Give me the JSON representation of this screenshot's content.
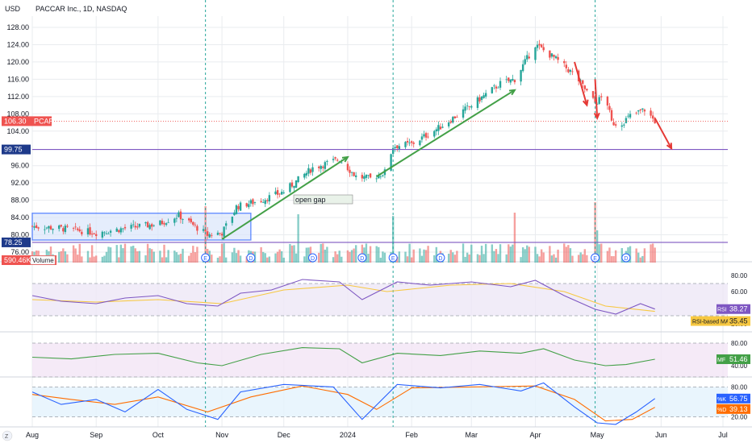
{
  "header": {
    "currency": "USD",
    "title": "PACCAR Inc., 1D, NASDAQ"
  },
  "colors": {
    "up": "#26a69a",
    "down": "#ef5350",
    "grid": "#e9ecef",
    "box_fill": "#dbe6fb",
    "box_stroke": "#2962ff",
    "hline": "#7e57c2",
    "trend_up": "#43a047",
    "trend_down": "#e53935",
    "rsi_line": "#7e57c2",
    "rsi_ma": "#f7c841",
    "mfi_line": "#43a047",
    "k_line": "#2962ff",
    "d_line": "#ff6d00",
    "event_line": "#26a69a"
  },
  "chart_data": [
    {
      "type": "candlestick",
      "symbol": "PCAR",
      "x_ticks": [
        "Aug",
        "Sep",
        "Oct",
        "Nov",
        "Dec",
        "2024",
        "Feb",
        "Mar",
        "Apr",
        "May",
        "Jun",
        "Jul"
      ],
      "y_ticks": [
        "128.00",
        "124.00",
        "120.00",
        "116.00",
        "112.00",
        "108.00",
        "104.00",
        "96.00",
        "92.00",
        "88.00",
        "84.00",
        "80.00",
        "76.00"
      ],
      "ylim": [
        75,
        130
      ],
      "last_price": {
        "label": "106.30",
        "symbol_label": "PCAR",
        "value": 106.3
      },
      "horizontal_levels": [
        {
          "label": "99.75",
          "value": 99.75
        },
        {
          "label": "78.25",
          "value": 78.25
        }
      ],
      "annotations": [
        "open gap"
      ],
      "volume": {
        "label": "590.46K",
        "title": "Volume"
      },
      "event_markers": [
        "E",
        "D",
        "D",
        "D",
        "E",
        "D",
        "E",
        "D"
      ],
      "series": [
        {
          "name": "close",
          "points": [
            {
              "d": "2023-08-01",
              "v": 82
            },
            {
              "d": "2023-08-15",
              "v": 81.5
            },
            {
              "d": "2023-09-01",
              "v": 80.5
            },
            {
              "d": "2023-09-15",
              "v": 81.5
            },
            {
              "d": "2023-10-01",
              "v": 82.5
            },
            {
              "d": "2023-10-11",
              "v": 84.5
            },
            {
              "d": "2023-10-25",
              "v": 80
            },
            {
              "d": "2023-11-01",
              "v": 80.5
            },
            {
              "d": "2023-11-06",
              "v": 84.5
            },
            {
              "d": "2023-11-08",
              "v": 86.5
            },
            {
              "d": "2023-11-20",
              "v": 88
            },
            {
              "d": "2023-12-01",
              "v": 90
            },
            {
              "d": "2023-12-15",
              "v": 95.5
            },
            {
              "d": "2023-12-28",
              "v": 97.5
            },
            {
              "d": "2024-01-05",
              "v": 93.5
            },
            {
              "d": "2024-01-12",
              "v": 93
            },
            {
              "d": "2024-01-19",
              "v": 94.5
            },
            {
              "d": "2024-01-23",
              "v": 100.5
            },
            {
              "d": "2024-02-01",
              "v": 101
            },
            {
              "d": "2024-02-15",
              "v": 105
            },
            {
              "d": "2024-03-01",
              "v": 110
            },
            {
              "d": "2024-03-15",
              "v": 115
            },
            {
              "d": "2024-03-22",
              "v": 116
            },
            {
              "d": "2024-04-01",
              "v": 124
            },
            {
              "d": "2024-04-10",
              "v": 121
            },
            {
              "d": "2024-04-20",
              "v": 117
            },
            {
              "d": "2024-04-30",
              "v": 110.5
            },
            {
              "d": "2024-05-05",
              "v": 112.5
            },
            {
              "d": "2024-05-08",
              "v": 106
            },
            {
              "d": "2024-05-12",
              "v": 105.5
            },
            {
              "d": "2024-05-17",
              "v": 107.5
            },
            {
              "d": "2024-05-24",
              "v": 109
            },
            {
              "d": "2024-05-29",
              "v": 106.3
            }
          ]
        }
      ]
    },
    {
      "type": "line",
      "name": "RSI",
      "y_ticks": [
        "80.00",
        "60.00",
        "40.00",
        "20.00"
      ],
      "ylim": [
        10,
        90
      ],
      "labels": [
        {
          "label": "RSI",
          "value_label": "38.27"
        },
        {
          "label": "RSI-based MA",
          "value_label": "35.45"
        }
      ],
      "series": [
        {
          "name": "RSI",
          "points": [
            {
              "d": "2023-08-01",
              "v": 55
            },
            {
              "d": "2023-08-15",
              "v": 48
            },
            {
              "d": "2023-09-01",
              "v": 45
            },
            {
              "d": "2023-09-15",
              "v": 52
            },
            {
              "d": "2023-10-01",
              "v": 55
            },
            {
              "d": "2023-10-15",
              "v": 45
            },
            {
              "d": "2023-10-30",
              "v": 42
            },
            {
              "d": "2023-11-10",
              "v": 58
            },
            {
              "d": "2023-11-25",
              "v": 62
            },
            {
              "d": "2023-12-10",
              "v": 75
            },
            {
              "d": "2023-12-28",
              "v": 72
            },
            {
              "d": "2024-01-08",
              "v": 50
            },
            {
              "d": "2024-01-25",
              "v": 72
            },
            {
              "d": "2024-02-10",
              "v": 68
            },
            {
              "d": "2024-03-01",
              "v": 72
            },
            {
              "d": "2024-03-20",
              "v": 66
            },
            {
              "d": "2024-04-01",
              "v": 74
            },
            {
              "d": "2024-04-15",
              "v": 55
            },
            {
              "d": "2024-04-30",
              "v": 38
            },
            {
              "d": "2024-05-10",
              "v": 32
            },
            {
              "d": "2024-05-22",
              "v": 45
            },
            {
              "d": "2024-05-29",
              "v": 38.27
            }
          ]
        },
        {
          "name": "RSI-based MA",
          "points": [
            {
              "d": "2023-08-01",
              "v": 50
            },
            {
              "d": "2023-09-01",
              "v": 47
            },
            {
              "d": "2023-10-01",
              "v": 50
            },
            {
              "d": "2023-11-01",
              "v": 45
            },
            {
              "d": "2023-12-01",
              "v": 62
            },
            {
              "d": "2024-01-01",
              "v": 68
            },
            {
              "d": "2024-01-20",
              "v": 60
            },
            {
              "d": "2024-02-20",
              "v": 68
            },
            {
              "d": "2024-03-20",
              "v": 70
            },
            {
              "d": "2024-04-15",
              "v": 60
            },
            {
              "d": "2024-05-05",
              "v": 42
            },
            {
              "d": "2024-05-29",
              "v": 35.45
            }
          ]
        }
      ]
    },
    {
      "type": "line",
      "name": "MF",
      "y_ticks": [
        "80.00",
        "40.00"
      ],
      "ylim": [
        20,
        100
      ],
      "labels": [
        {
          "label": "MF",
          "value_label": "51.46"
        }
      ],
      "series": [
        {
          "name": "MF",
          "points": [
            {
              "d": "2023-08-01",
              "v": 55
            },
            {
              "d": "2023-08-20",
              "v": 52
            },
            {
              "d": "2023-09-10",
              "v": 60
            },
            {
              "d": "2023-10-01",
              "v": 62
            },
            {
              "d": "2023-10-20",
              "v": 45
            },
            {
              "d": "2023-11-01",
              "v": 40
            },
            {
              "d": "2023-11-20",
              "v": 60
            },
            {
              "d": "2023-12-10",
              "v": 72
            },
            {
              "d": "2023-12-28",
              "v": 70
            },
            {
              "d": "2024-01-08",
              "v": 45
            },
            {
              "d": "2024-01-25",
              "v": 62
            },
            {
              "d": "2024-02-15",
              "v": 58
            },
            {
              "d": "2024-03-05",
              "v": 66
            },
            {
              "d": "2024-03-25",
              "v": 62
            },
            {
              "d": "2024-04-05",
              "v": 70
            },
            {
              "d": "2024-04-20",
              "v": 50
            },
            {
              "d": "2024-05-05",
              "v": 40
            },
            {
              "d": "2024-05-15",
              "v": 42
            },
            {
              "d": "2024-05-29",
              "v": 51.46
            }
          ]
        }
      ]
    },
    {
      "type": "line",
      "name": "Stoch",
      "y_ticks": [
        "80.00",
        "20.00"
      ],
      "ylim": [
        0,
        100
      ],
      "labels": [
        {
          "label": "%K",
          "value_label": "56.75"
        },
        {
          "label": "%D",
          "value_label": "39.13"
        }
      ],
      "series": [
        {
          "name": "%K",
          "points": [
            {
              "d": "2023-08-01",
              "v": 70
            },
            {
              "d": "2023-08-15",
              "v": 45
            },
            {
              "d": "2023-09-01",
              "v": 55
            },
            {
              "d": "2023-09-15",
              "v": 30
            },
            {
              "d": "2023-10-01",
              "v": 75
            },
            {
              "d": "2023-10-15",
              "v": 35
            },
            {
              "d": "2023-10-30",
              "v": 15
            },
            {
              "d": "2023-11-10",
              "v": 70
            },
            {
              "d": "2023-12-01",
              "v": 85
            },
            {
              "d": "2023-12-25",
              "v": 80
            },
            {
              "d": "2024-01-08",
              "v": 15
            },
            {
              "d": "2024-01-25",
              "v": 85
            },
            {
              "d": "2024-02-15",
              "v": 78
            },
            {
              "d": "2024-03-05",
              "v": 85
            },
            {
              "d": "2024-03-25",
              "v": 72
            },
            {
              "d": "2024-04-05",
              "v": 88
            },
            {
              "d": "2024-04-20",
              "v": 40
            },
            {
              "d": "2024-05-01",
              "v": 8
            },
            {
              "d": "2024-05-10",
              "v": 5
            },
            {
              "d": "2024-05-20",
              "v": 30
            },
            {
              "d": "2024-05-29",
              "v": 56.75
            }
          ]
        },
        {
          "name": "%D",
          "points": [
            {
              "d": "2023-08-01",
              "v": 65
            },
            {
              "d": "2023-08-20",
              "v": 55
            },
            {
              "d": "2023-09-10",
              "v": 45
            },
            {
              "d": "2023-10-01",
              "v": 60
            },
            {
              "d": "2023-10-25",
              "v": 30
            },
            {
              "d": "2023-11-15",
              "v": 60
            },
            {
              "d": "2023-12-10",
              "v": 82
            },
            {
              "d": "2024-01-01",
              "v": 65
            },
            {
              "d": "2024-01-15",
              "v": 35
            },
            {
              "d": "2024-02-01",
              "v": 78
            },
            {
              "d": "2024-03-01",
              "v": 80
            },
            {
              "d": "2024-04-01",
              "v": 82
            },
            {
              "d": "2024-04-20",
              "v": 55
            },
            {
              "d": "2024-05-05",
              "v": 12
            },
            {
              "d": "2024-05-18",
              "v": 15
            },
            {
              "d": "2024-05-29",
              "v": 39.13
            }
          ]
        }
      ]
    }
  ]
}
